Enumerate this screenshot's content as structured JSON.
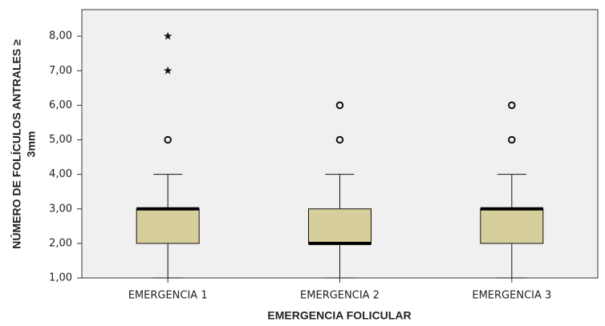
{
  "chart_data": {
    "type": "box",
    "y_label": [
      "NÚMERO DE FOLÍCULOS ANTRALES ≥",
      "3mm"
    ],
    "x_label": "EMERGENCIA FOLICULAR",
    "categories": [
      "EMERGENCIA 1",
      "EMERGENCIA 2",
      "EMERGENCIA 3"
    ],
    "color": "#d6cf9c",
    "boxes": [
      {
        "min": 1,
        "q1": 2,
        "median": 3,
        "q3": 3,
        "max": 4,
        "outliers": [
          {
            "value": 5,
            "marker": "circle"
          },
          {
            "value": 7,
            "marker": "star"
          },
          {
            "value": 8,
            "marker": "star"
          }
        ]
      },
      {
        "min": 1,
        "q1": 2,
        "median": 2,
        "q3": 3,
        "max": 4,
        "outliers": [
          {
            "value": 5,
            "marker": "circle"
          },
          {
            "value": 6,
            "marker": "circle"
          }
        ]
      },
      {
        "min": 1,
        "q1": 2,
        "median": 3,
        "q3": 3,
        "max": 4,
        "outliers": [
          {
            "value": 5,
            "marker": "circle"
          },
          {
            "value": 6,
            "marker": "circle"
          }
        ]
      }
    ],
    "ylim": [
      1,
      8.77
    ],
    "yticks": [
      {
        "value": 1,
        "label": "1,00"
      },
      {
        "value": 2,
        "label": "2,00"
      },
      {
        "value": 3,
        "label": "3,00"
      },
      {
        "value": 4,
        "label": "4,00"
      },
      {
        "value": 5,
        "label": "5,00"
      },
      {
        "value": 6,
        "label": "6,00"
      },
      {
        "value": 7,
        "label": "7,00"
      },
      {
        "value": 8,
        "label": "8,00"
      }
    ]
  }
}
